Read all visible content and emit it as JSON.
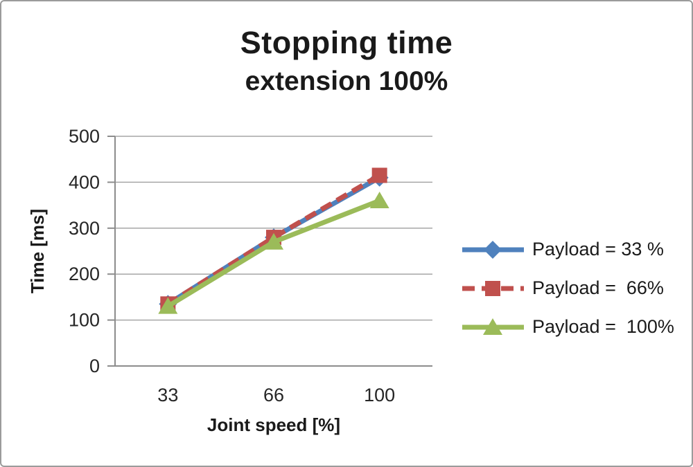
{
  "chart_data": {
    "type": "line",
    "title": "Stopping time",
    "subtitle": "extension 100%",
    "xlabel": "Joint speed [%]",
    "ylabel": "Time [ms]",
    "categories": [
      "33",
      "66",
      "100"
    ],
    "x_values": [
      33,
      66,
      100
    ],
    "ylim": [
      0,
      500
    ],
    "yticks": [
      0,
      100,
      200,
      300,
      400,
      500
    ],
    "grid": true,
    "legend_position": "right",
    "series": [
      {
        "name": "Payload = 33 %",
        "values": [
          135,
          280,
          410
        ],
        "color": "#4F81BD",
        "marker": "diamond",
        "dash": "solid"
      },
      {
        "name": "Payload =  66%",
        "values": [
          135,
          280,
          415
        ],
        "color": "#C0504D",
        "marker": "square",
        "dash": "dashed"
      },
      {
        "name": "Payload =  100%",
        "values": [
          130,
          270,
          360
        ],
        "color": "#9BBB59",
        "marker": "triangle",
        "dash": "solid"
      }
    ]
  },
  "colors": {
    "background": "#FFFFFF",
    "border": "#9B9B9B",
    "axis": "#8C8C8C",
    "gridline": "#A6A6A6",
    "text": "#1A1A1A"
  }
}
